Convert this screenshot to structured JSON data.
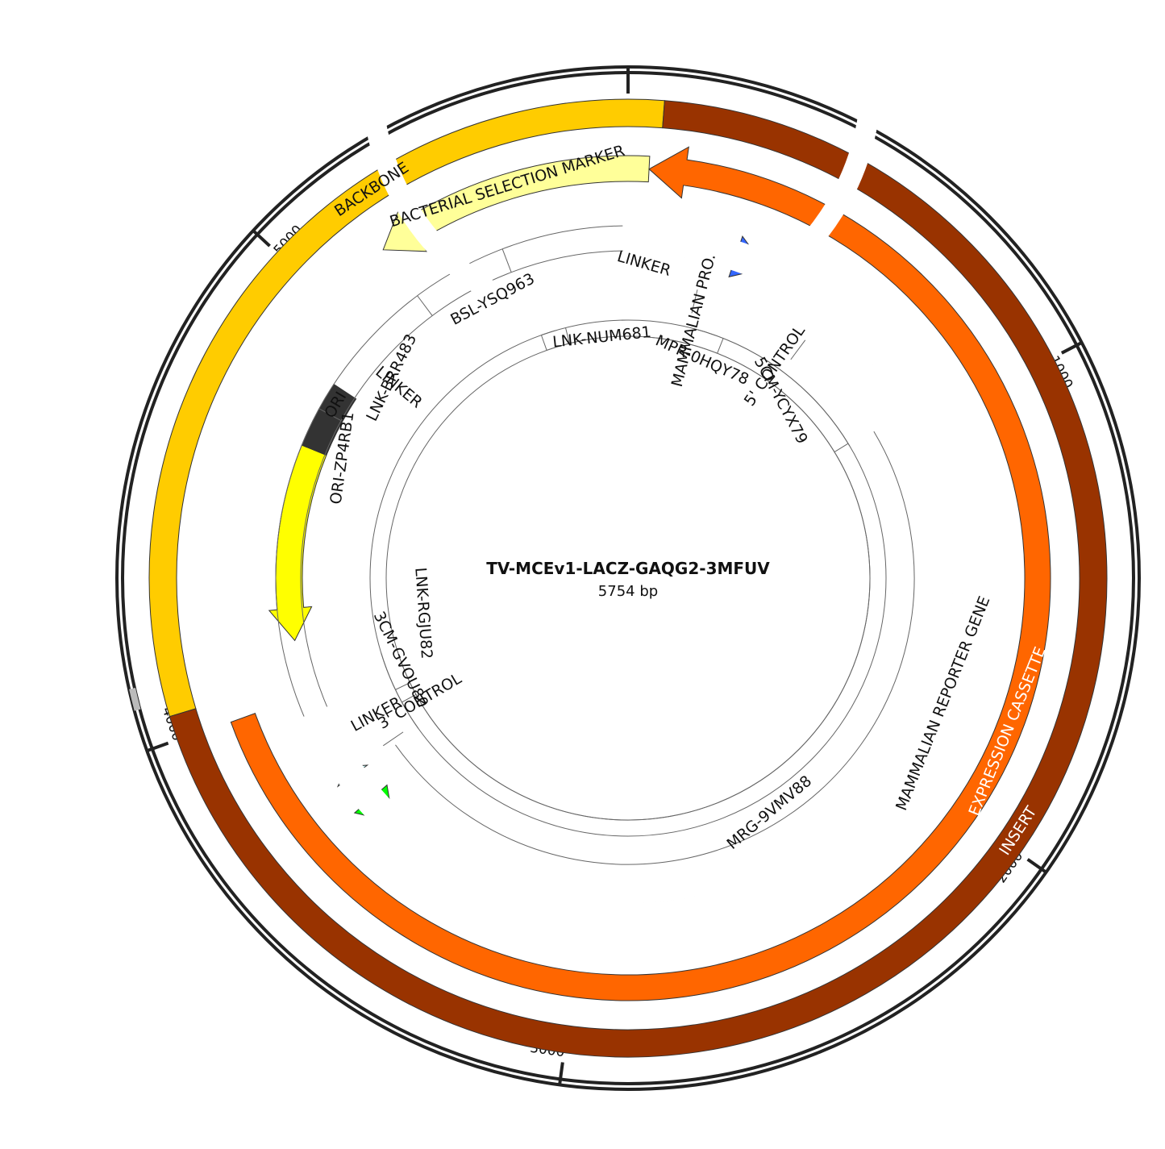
{
  "plasmid": {
    "name": "TV-MCEv1-LACZ-GAQG2-3MFUV",
    "length_label": "5754 bp",
    "length_bp": 5754
  },
  "ticks": [
    {
      "bp": 1000,
      "label": "1000"
    },
    {
      "bp": 2000,
      "label": "2000"
    },
    {
      "bp": 3000,
      "label": "3000"
    },
    {
      "bp": 4000,
      "label": "4000"
    },
    {
      "bp": 5000,
      "label": "5000"
    }
  ],
  "colors": {
    "backbone": "#ffcc00",
    "insert": "#993300",
    "bacterial_selection_marker": "#ffff99",
    "expression_cassette": "#ff6600",
    "linker": "#333333",
    "mammalian_promoter": "#3366ff",
    "five_prime_control": "#99ccff",
    "mammalian_reporter_gene": "#00ff00",
    "three_prime_control": "#ccffff",
    "ori": "#ffff00"
  },
  "tracks": {
    "outer": [
      {
        "label": "BACKBONE",
        "color": "#ffcc00",
        "start_bp": 4047,
        "end_bp": 5824
      },
      {
        "label": "INSERT",
        "color": "#993300",
        "start_bp": 5824,
        "end_bp": 4047
      }
    ],
    "second": [
      {
        "label": "BACTERIAL SELECTION MARKER",
        "color": "#ffff99",
        "start_bp": 5801,
        "end_bp": 5167
      },
      {
        "label": "EXPRESSION CASSETTE",
        "color": "#ff6600",
        "start_bp": 5801,
        "end_bp": 3997
      }
    ],
    "third": [
      {
        "label": "LINKER",
        "color": "#333333",
        "start_bp": 5756,
        "end_bp": 5846
      },
      {
        "label": "MAMMALIAN PRO.",
        "color": "#3366ff",
        "start_bp": 5846,
        "end_bp": 6137
      },
      {
        "label": "5' CONTROL",
        "color": "#99ccff",
        "start_bp": 6137,
        "end_bp": 6196
      },
      {
        "label": "MAMMALIAN REPORTER GENE",
        "color": "#00ff00",
        "start_bp": 6196,
        "end_bp": 9458
      },
      {
        "label": "3' CONTROL",
        "color": "#ccffff",
        "start_bp": 9458,
        "end_bp": 9527
      },
      {
        "label": "LINKER",
        "color": "#333333",
        "start_bp": 9527,
        "end_bp": 9656
      },
      {
        "label": "ORI",
        "color": "#ffff00",
        "start_bp": 10424,
        "end_bp": 9900
      },
      {
        "label": "LINKER",
        "color": "#333333",
        "start_bp": 10603,
        "end_bp": 10424
      }
    ],
    "inner": [
      "BSL-YSQ963",
      "LNK-BRR483",
      "ORI-ZP4RB1",
      "LNK-RGJU82",
      "3CM-GVOU80",
      "MRG-9VMV88",
      "LNK-NUM681",
      "MPR-0HQY78",
      "5CM-YCYX79"
    ]
  }
}
